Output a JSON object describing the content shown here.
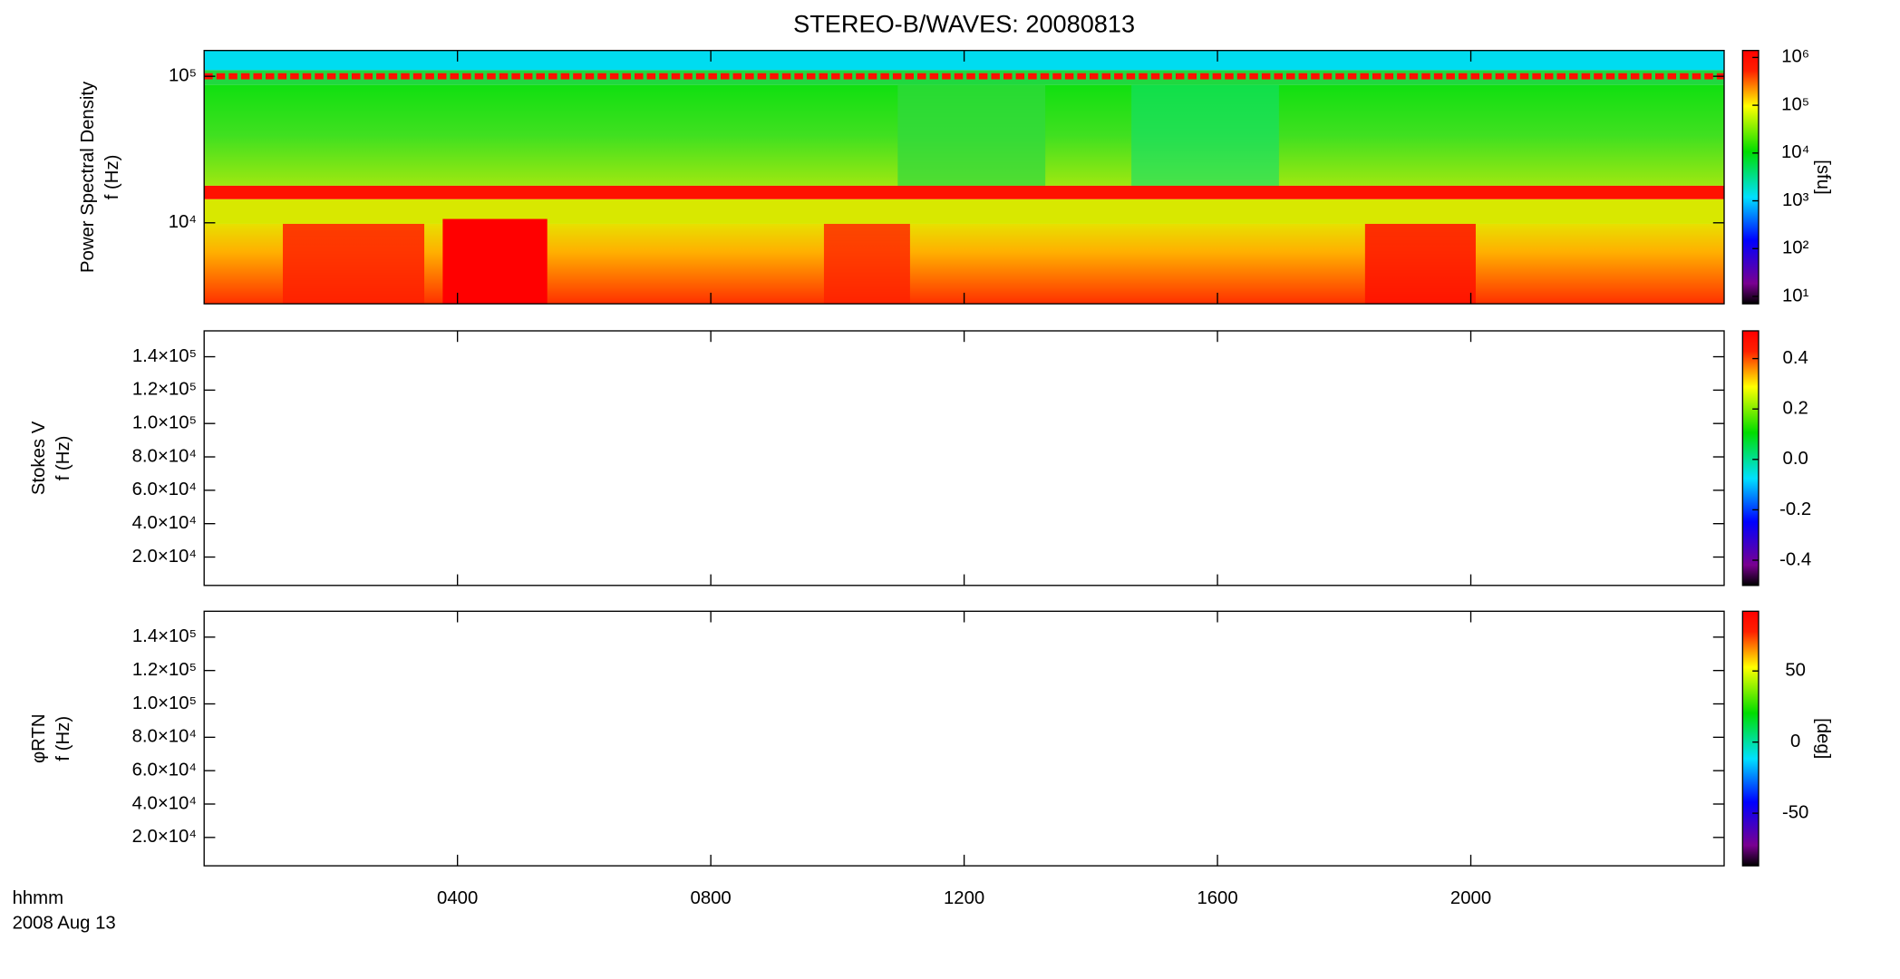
{
  "title": "STEREO-B/WAVES: 20080813",
  "x_axis": {
    "label": [
      "hhmm",
      "2008 Aug 13"
    ],
    "xlim": [
      0,
      24
    ],
    "xticks": [
      {
        "value": 4,
        "label": "0400"
      },
      {
        "value": 8,
        "label": "0800"
      },
      {
        "value": 12,
        "label": "1200"
      },
      {
        "value": 16,
        "label": "1600"
      },
      {
        "value": 20,
        "label": "2000"
      }
    ]
  },
  "chart_data": [
    {
      "type": "spectrogram",
      "ylabel": [
        "Power Spectral Density",
        "f (Hz)"
      ],
      "yscale": "log",
      "ylim": [
        2800,
        150000
      ],
      "yticks": [
        {
          "value": 10000,
          "label": "10⁴"
        },
        {
          "value": 100000,
          "label": "10⁵"
        }
      ],
      "colorbar": {
        "label": "[sfu]",
        "scale": "log",
        "clim": [
          7,
          1400000
        ],
        "ticks": [
          {
            "value": 10,
            "label": "10¹"
          },
          {
            "value": 100,
            "label": "10²"
          },
          {
            "value": 1000,
            "label": "10³"
          },
          {
            "value": 10000,
            "label": "10⁴"
          },
          {
            "value": 100000,
            "label": "10⁵"
          },
          {
            "value": 1000000,
            "label": "10⁶"
          }
        ]
      }
    },
    {
      "type": "spectrogram",
      "ylabel": [
        "Stokes V",
        "f (Hz)"
      ],
      "yscale": "linear",
      "ylim": [
        3000,
        155500
      ],
      "yticks": [
        {
          "value": 20000,
          "label": "2.0×10⁴"
        },
        {
          "value": 40000,
          "label": "4.0×10⁴"
        },
        {
          "value": 60000,
          "label": "6.0×10⁴"
        },
        {
          "value": 80000,
          "label": "8.0×10⁴"
        },
        {
          "value": 100000,
          "label": "1.0×10⁵"
        },
        {
          "value": 120000,
          "label": "1.2×10⁵"
        },
        {
          "value": 140000,
          "label": "1.4×10⁵"
        }
      ],
      "colorbar": {
        "scale": "linear",
        "clim": [
          -0.5,
          0.51
        ],
        "ticks": [
          {
            "value": -0.4,
            "label": "-0.4"
          },
          {
            "value": -0.2,
            "label": "-0.2"
          },
          {
            "value": 0,
            "label": "0.0"
          },
          {
            "value": 0.2,
            "label": "0.2"
          },
          {
            "value": 0.4,
            "label": "0.4"
          }
        ]
      }
    },
    {
      "type": "spectrogram",
      "ylabel": [
        "φRTN",
        "f (Hz)"
      ],
      "yscale": "linear",
      "ylim": [
        3000,
        155500
      ],
      "yticks": [
        {
          "value": 20000,
          "label": "2.0×10⁴"
        },
        {
          "value": 40000,
          "label": "4.0×10⁴"
        },
        {
          "value": 60000,
          "label": "6.0×10⁴"
        },
        {
          "value": 80000,
          "label": "8.0×10⁴"
        },
        {
          "value": 100000,
          "label": "1.0×10⁵"
        },
        {
          "value": 120000,
          "label": "1.2×10⁵"
        },
        {
          "value": 140000,
          "label": "1.4×10⁵"
        }
      ],
      "colorbar": {
        "label": "[deg]",
        "scale": "linear",
        "clim": [
          -87,
          92
        ],
        "ticks": [
          {
            "value": -50,
            "label": "-50"
          },
          0,
          50
        ]
      }
    }
  ]
}
